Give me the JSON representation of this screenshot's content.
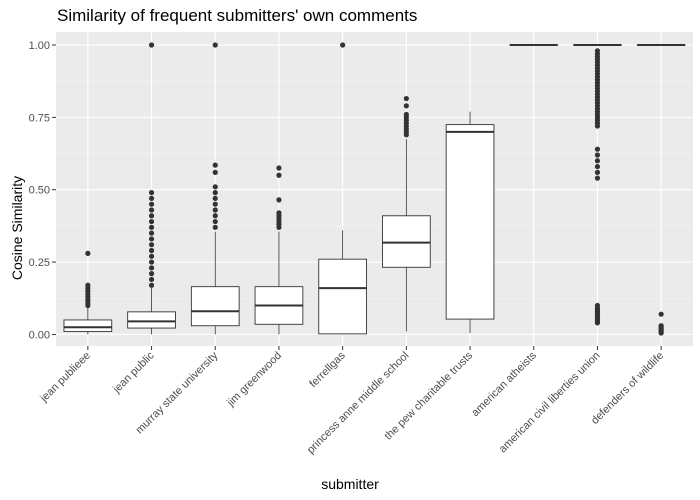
{
  "chart_data": {
    "type": "boxplot",
    "title": "Similarity of frequent submitters' own comments",
    "xlabel": "submitter",
    "ylabel": "Cosine Similarity",
    "ylim": [
      -0.04,
      1.045
    ],
    "yticks": [
      0.0,
      0.25,
      0.5,
      0.75,
      1.0
    ],
    "ytick_labels": [
      "0.00",
      "0.25",
      "0.50",
      "0.75",
      "1.00"
    ],
    "grid": true,
    "categories": [
      "jean publieee",
      "jean public",
      "murray state university",
      "jim greenwood",
      "ferrellgas",
      "princess anne middle school",
      "the pew charitable trusts",
      "american atheists",
      "american civil liberties union",
      "defenders of wildlife"
    ],
    "boxes": [
      {
        "category": "jean publieee",
        "min": 0.0,
        "q1": 0.01,
        "median": 0.025,
        "q3": 0.05,
        "max": 0.095,
        "outliers": [
          0.1,
          0.11,
          0.12,
          0.13,
          0.14,
          0.15,
          0.16,
          0.17,
          0.28
        ]
      },
      {
        "category": "jean public",
        "min": 0.0,
        "q1": 0.022,
        "median": 0.045,
        "q3": 0.078,
        "max": 0.16,
        "outliers": [
          0.17,
          0.19,
          0.21,
          0.23,
          0.25,
          0.27,
          0.29,
          0.31,
          0.33,
          0.35,
          0.37,
          0.39,
          0.41,
          0.43,
          0.45,
          0.47,
          0.49,
          1.0
        ]
      },
      {
        "category": "murray state university",
        "min": 0.0,
        "q1": 0.03,
        "median": 0.08,
        "q3": 0.165,
        "max": 0.355,
        "outliers": [
          0.37,
          0.39,
          0.41,
          0.43,
          0.45,
          0.47,
          0.49,
          0.51,
          0.56,
          0.585,
          1.0
        ]
      },
      {
        "category": "jim greenwood",
        "min": 0.0,
        "q1": 0.035,
        "median": 0.1,
        "q3": 0.165,
        "max": 0.355,
        "outliers": [
          0.37,
          0.38,
          0.39,
          0.4,
          0.41,
          0.42,
          0.465,
          0.55,
          0.575
        ]
      },
      {
        "category": "ferrellgas",
        "min": 0.0,
        "q1": 0.002,
        "median": 0.16,
        "q3": 0.26,
        "max": 0.36,
        "outliers": [
          1.0
        ]
      },
      {
        "category": "princess anne middle school",
        "min": 0.01,
        "q1": 0.232,
        "median": 0.317,
        "q3": 0.41,
        "max": 0.675,
        "outliers": [
          0.69,
          0.7,
          0.71,
          0.72,
          0.73,
          0.74,
          0.75,
          0.76,
          0.79,
          0.815
        ]
      },
      {
        "category": "the pew charitable trusts",
        "min": 0.005,
        "q1": 0.053,
        "median": 0.7,
        "q3": 0.725,
        "max": 0.77,
        "outliers": []
      },
      {
        "category": "american atheists",
        "min": 1.0,
        "q1": 1.0,
        "median": 1.0,
        "q3": 1.0,
        "max": 1.0,
        "outliers": []
      },
      {
        "category": "american civil liberties union",
        "min": 1.0,
        "q1": 1.0,
        "median": 1.0,
        "q3": 1.0,
        "max": 1.0,
        "outliers": [
          0.04,
          0.045,
          0.05,
          0.055,
          0.06,
          0.065,
          0.07,
          0.075,
          0.08,
          0.085,
          0.09,
          0.1,
          0.54,
          0.56,
          0.58,
          0.6,
          0.62,
          0.64,
          0.72,
          0.73,
          0.74,
          0.75,
          0.76,
          0.77,
          0.78,
          0.79,
          0.8,
          0.81,
          0.82,
          0.83,
          0.84,
          0.85,
          0.86,
          0.87,
          0.88,
          0.89,
          0.9,
          0.91,
          0.92,
          0.93,
          0.94,
          0.95,
          0.96,
          0.97,
          0.98
        ]
      },
      {
        "category": "defenders of wildlife",
        "min": 1.0,
        "q1": 1.0,
        "median": 1.0,
        "q3": 1.0,
        "max": 1.0,
        "outliers": [
          0.005,
          0.01,
          0.015,
          0.02,
          0.025,
          0.03,
          0.07
        ]
      }
    ]
  },
  "colors": {
    "panel_background": "#EBEBEB",
    "grid_major": "#FFFFFF",
    "grid_minor": "#F5F5F5",
    "box_fill": "#FFFFFF",
    "box_line": "#333333",
    "outlier": "#333333",
    "tick_label": "#4D4D4D"
  }
}
